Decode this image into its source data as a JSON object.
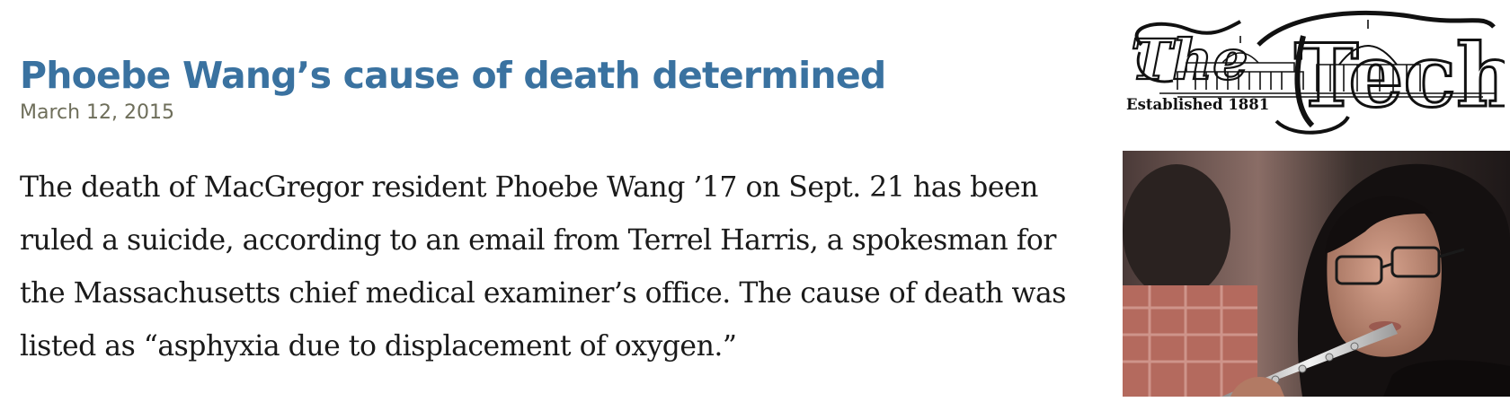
{
  "article": {
    "headline": "Phoebe Wang’s cause of death determined",
    "date": "March 12, 2015",
    "body": "The death of MacGregor resident Phoebe Wang ’17 on Sept. 21 has been ruled a suicide, according to an email from Terrel Harris, a spokesman for the Massachusetts chief medical examiner’s office. The cause of death was listed as “asphyxia due to displacement of oxygen.”"
  },
  "masthead": {
    "logo_text": "The Tech",
    "established": "Established 1881"
  },
  "photo": {
    "subject": "student-playing-flute"
  },
  "colors": {
    "headline": "#3a72a0",
    "date": "#6e6e5a",
    "body": "#1a1a1a"
  }
}
